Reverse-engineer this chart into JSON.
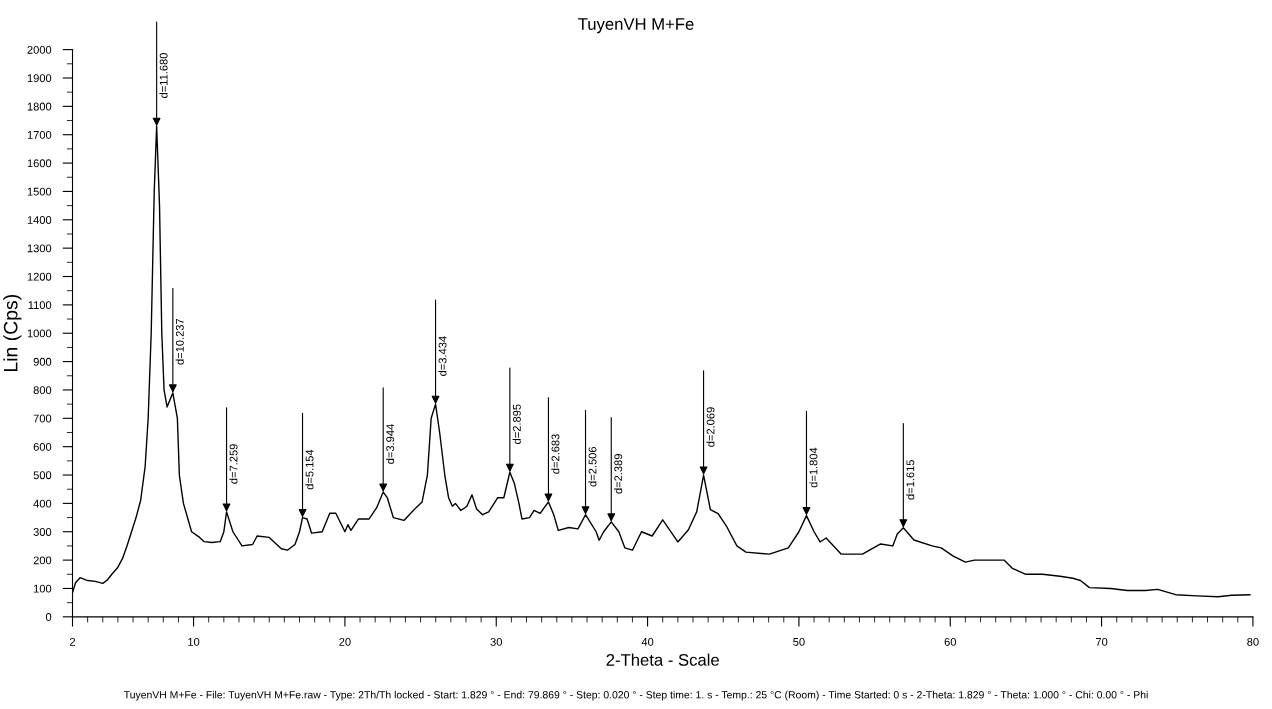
{
  "chart_data": {
    "type": "line",
    "title": "TuyenVH M+Fe",
    "xlabel": "2-Theta - Scale",
    "ylabel": "Lin (Cps)",
    "x": [
      2.0,
      2.2,
      2.5,
      3.0,
      3.5,
      4.0,
      4.3,
      4.6,
      5.0,
      5.3,
      5.6,
      5.9,
      6.2,
      6.5,
      6.8,
      7.0,
      7.2,
      7.4,
      7.56,
      7.75,
      7.9,
      8.05,
      8.25,
      8.63,
      8.93,
      9.06,
      9.33,
      9.87,
      10.4,
      10.7,
      11.2,
      11.76,
      12.0,
      12.18,
      12.6,
      13.2,
      13.9,
      14.2,
      15.0,
      15.8,
      16.2,
      16.7,
      17.0,
      17.2,
      17.5,
      17.8,
      18.5,
      19.0,
      19.4,
      20.0,
      20.2,
      20.4,
      20.9,
      21.6,
      22.1,
      22.53,
      22.8,
      23.2,
      23.9,
      24.7,
      25.1,
      25.45,
      25.7,
      25.99,
      26.26,
      26.6,
      26.85,
      27.1,
      27.3,
      27.66,
      28.06,
      28.4,
      28.7,
      29.1,
      29.5,
      30.1,
      30.5,
      30.9,
      31.2,
      31.5,
      31.7,
      32.2,
      32.5,
      32.9,
      33.45,
      33.8,
      34.1,
      34.8,
      35.4,
      35.9,
      36.6,
      36.8,
      37.1,
      37.6,
      38.1,
      38.5,
      39.0,
      39.6,
      40.3,
      41.0,
      42.0,
      42.7,
      43.25,
      43.7,
      44.15,
      44.66,
      45.2,
      45.9,
      46.5,
      48.05,
      49.3,
      50.0,
      50.5,
      51.0,
      51.4,
      51.8,
      52.8,
      54.2,
      55.4,
      56.2,
      56.5,
      56.9,
      57.6,
      58.8,
      59.4,
      60.2,
      61.0,
      61.6,
      62.4,
      63.55,
      64.1,
      65.0,
      66.1,
      67.25,
      68.1,
      68.6,
      69.2,
      70.6,
      71.7,
      72.9,
      73.7,
      74.9,
      76.3,
      77.7,
      78.6,
      79.8
    ],
    "series": [
      {
        "color": "#000000",
        "values": [
          85,
          120,
          138,
          128,
          125,
          118,
          130,
          150,
          175,
          205,
          250,
          300,
          350,
          410,
          530,
          700,
          1000,
          1500,
          1730,
          1450,
          1000,
          800,
          740,
          790,
          700,
          500,
          400,
          300,
          280,
          265,
          262,
          265,
          300,
          370,
          300,
          250,
          255,
          285,
          280,
          240,
          235,
          255,
          300,
          350,
          345,
          295,
          300,
          365,
          365,
          300,
          325,
          305,
          345,
          345,
          385,
          440,
          420,
          350,
          340,
          385,
          405,
          500,
          700,
          750,
          650,
          500,
          420,
          390,
          400,
          375,
          390,
          430,
          380,
          360,
          370,
          420,
          420,
          510,
          470,
          400,
          345,
          350,
          375,
          365,
          405,
          360,
          305,
          315,
          310,
          360,
          300,
          270,
          300,
          335,
          300,
          243,
          235,
          300,
          285,
          342,
          264,
          307,
          371,
          500,
          378,
          364,
          321,
          250,
          228,
          221,
          243,
          300,
          357,
          300,
          264,
          278,
          221,
          221,
          257,
          250,
          292,
          314,
          271,
          250,
          243,
          214,
          193,
          200,
          200,
          200,
          171,
          150,
          150,
          143,
          136,
          128,
          103,
          100,
          93,
          93,
          97,
          78,
          74,
          71,
          76,
          78
        ]
      }
    ],
    "xlim": [
      2,
      80
    ],
    "ylim": [
      0,
      2000
    ],
    "xticks": [
      2,
      10,
      20,
      30,
      40,
      50,
      60,
      70,
      80
    ],
    "yticks": [
      0,
      100,
      200,
      300,
      400,
      500,
      600,
      700,
      800,
      900,
      1000,
      1100,
      1200,
      1300,
      1400,
      1500,
      1600,
      1700,
      1800,
      1900,
      2000
    ],
    "grid": false,
    "marker": "none",
    "line_style": "solid",
    "annotations": [
      {
        "text": "d=11.680",
        "x": 7.56,
        "y": 1730
      },
      {
        "text": "d=10.237",
        "x": 8.63,
        "y": 790
      },
      {
        "text": "d=7.259",
        "x": 12.18,
        "y": 370
      },
      {
        "text": "d=5.154",
        "x": 17.2,
        "y": 350
      },
      {
        "text": "d=3.944",
        "x": 22.53,
        "y": 440
      },
      {
        "text": "d=3.434",
        "x": 25.99,
        "y": 750
      },
      {
        "text": "d=2.895",
        "x": 30.9,
        "y": 510
      },
      {
        "text": "d=2.683",
        "x": 33.45,
        "y": 405
      },
      {
        "text": "d=2.506",
        "x": 35.9,
        "y": 360
      },
      {
        "text": "d=2.389",
        "x": 37.6,
        "y": 335
      },
      {
        "text": "d=2.069",
        "x": 43.7,
        "y": 500
      },
      {
        "text": "d=1.804",
        "x": 50.5,
        "y": 357
      },
      {
        "text": "d=1.615",
        "x": 56.9,
        "y": 314
      },
      "TuyenVH M+Fe - File: TuyenVH M+Fe.raw - Type: 2Th/Th locked - Start: 1.829 ° - End: 79.869 ° - Step: 0.020 ° - Step time: 1. s - Temp.: 25 °C (Room) - Time Started: 0 s - 2-Theta: 1.829 ° - Theta: 1.000 ° - Chi: 0.00 ° - Phi"
    ]
  }
}
